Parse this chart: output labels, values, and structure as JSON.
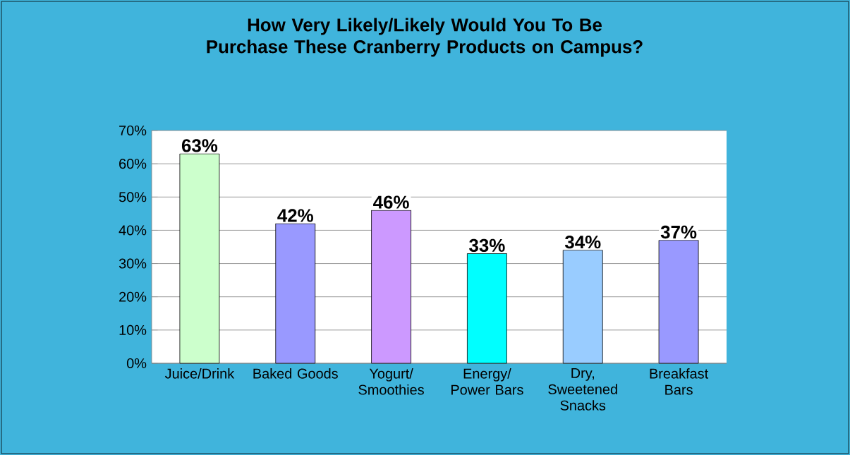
{
  "chart_data": {
    "type": "bar",
    "title": "How Very Likely/Likely Would You To Be Purchase These Cranberry Products on Campus?",
    "categories": [
      "Juice/Drink",
      "Baked Goods",
      "Yogurt/ Smoothies",
      "Energy/ Power Bars",
      "Dry, Sweetened Snacks",
      "Breakfast Bars"
    ],
    "values": [
      63,
      42,
      46,
      33,
      34,
      37
    ],
    "colors": [
      "#ccffcc",
      "#9999ff",
      "#cc99ff",
      "#00ffff",
      "#99ccff",
      "#9999ff"
    ],
    "value_labels": [
      "63%",
      "42%",
      "46%",
      "33%",
      "34%",
      "37%"
    ],
    "ylim": [
      0,
      70
    ],
    "yticks": [
      {
        "value": 0,
        "label": "0%"
      },
      {
        "value": 10,
        "label": "10%"
      },
      {
        "value": 20,
        "label": "20%"
      },
      {
        "value": 30,
        "label": "30%"
      },
      {
        "value": 40,
        "label": "40%"
      },
      {
        "value": 50,
        "label": "50%"
      },
      {
        "value": 60,
        "label": "60%"
      },
      {
        "value": 70,
        "label": "70%"
      }
    ],
    "grid": "y"
  }
}
